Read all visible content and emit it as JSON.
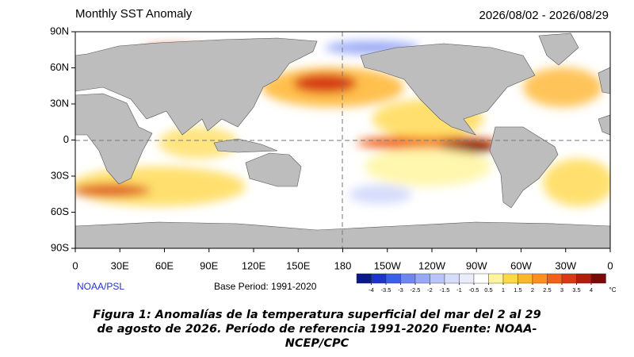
{
  "header": {
    "title": "Monthly SST Anomaly",
    "date_range": "2026/08/02 - 2026/08/29"
  },
  "latitude_labels": [
    "90N",
    "60N",
    "30N",
    "0",
    "30S",
    "60S",
    "90S"
  ],
  "longitude_labels": [
    "0",
    "30E",
    "60E",
    "90E",
    "120E",
    "150E",
    "180",
    "150W",
    "120W",
    "90W",
    "60W",
    "30W",
    "0"
  ],
  "footer": {
    "source": "NOAA/PSL",
    "base_period": "Base Period: 1991-2020"
  },
  "colorbar": {
    "ticks": [
      -4,
      -3.5,
      -3,
      -2.5,
      -2,
      -1.5,
      -1,
      -0.5,
      0.5,
      1,
      1.5,
      2,
      2.5,
      3,
      3.5,
      4
    ],
    "unit": "°C",
    "colors": [
      "#0a1a8c",
      "#1c37c8",
      "#3b5ee6",
      "#6e86f0",
      "#97a8f5",
      "#b9c4f8",
      "#d6dcfb",
      "#e8ecfd",
      "#ffffff",
      "#fff59a",
      "#ffd84a",
      "#ffb52e",
      "#ff8f1f",
      "#f0621a",
      "#d63a12",
      "#b01e0c",
      "#7a0a05"
    ]
  },
  "caption": [
    "Figura 1: Anomalías de la temperatura superficial del mar del 2 al 29",
    "de agosto de 2026. Período de referencia 1991-2020 Fuente: NOAA-",
    "NCEP/CPC"
  ]
}
